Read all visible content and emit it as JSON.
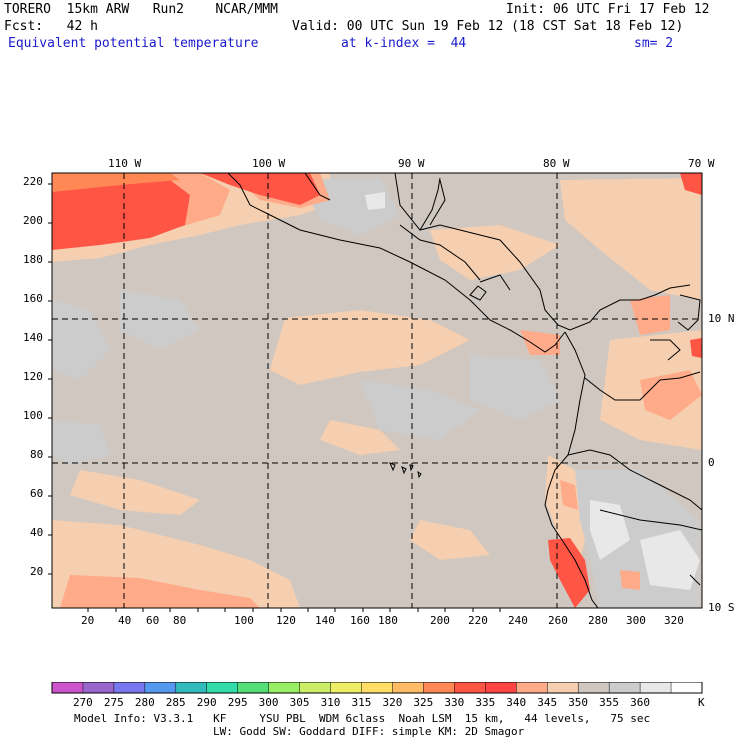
{
  "header": {
    "model": "TORERO  15km ARW   Run2    NCAR/MMM",
    "init": "Init: 06 UTC Fri 17 Feb 12",
    "fcst": "Fcst:   42 h",
    "valid": "Valid: 00 UTC Sun 19 Feb 12 (18 CST Sat 18 Feb 12)",
    "field": "Equivalent potential temperature",
    "level": "at k-index =  44",
    "smooth": "sm= 2"
  },
  "axes": {
    "x_ticks": [
      "20",
      "40",
      "60",
      "80",
      "100",
      "120",
      "140",
      "160",
      "180",
      "200",
      "220",
      "240",
      "260",
      "280",
      "300",
      "320"
    ],
    "y_ticks": [
      "20",
      "40",
      "60",
      "80",
      "100",
      "120",
      "140",
      "160",
      "180",
      "200",
      "220"
    ],
    "lon_labels": [
      "110 W",
      "100 W",
      "90 W",
      "80 W",
      "70 W"
    ],
    "lat_labels": [
      "10 N",
      "0",
      "10 S"
    ]
  },
  "colorbar": {
    "labels": [
      "270",
      "275",
      "280",
      "285",
      "290",
      "295",
      "300",
      "305",
      "310",
      "315",
      "320",
      "325",
      "330",
      "335",
      "340",
      "345",
      "350",
      "355",
      "360"
    ],
    "unit": "K",
    "colors": [
      "#cc55cc",
      "#9966cc",
      "#7777ee",
      "#5599ee",
      "#33bbbb",
      "#33ddaa",
      "#55dd77",
      "#99ee66",
      "#ccee66",
      "#eeee66",
      "#ffdd66",
      "#ffbb66",
      "#ff8855",
      "#ff5544",
      "#ff4444",
      "#ffaa88",
      "#f5cfb0",
      "#cfc7c0",
      "#cccccc",
      "#e8e8e8",
      "#ffffff"
    ]
  },
  "footer": {
    "line1": "Model Info: V3.3.1   KF     YSU PBL  WDM 6class  Noah LSM  15 km,   44 levels,   75 sec",
    "line2": "LW: Godd SW: Goddard DIFF: simple KM: 2D Smagor"
  }
}
